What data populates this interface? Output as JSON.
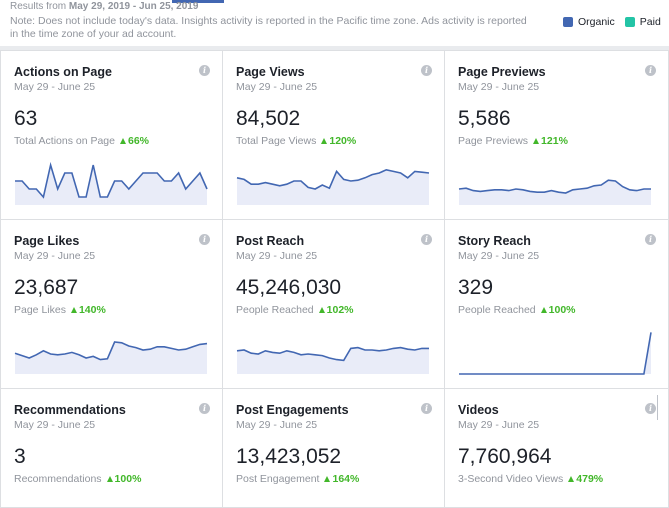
{
  "header": {
    "results_prefix": "Results from",
    "results_range": "May 29, 2019 - Jun 25, 2019",
    "note": "Note: Does not include today's data. Insights activity is reported in the Pacific time zone. Ads activity is reported in the time zone of your ad account."
  },
  "legend": {
    "organic_label": "Organic",
    "paid_label": "Paid",
    "organic_color": "#4267b2",
    "paid_color": "#23c4a6"
  },
  "cards": [
    {
      "title": "Actions on Page",
      "dates": "May 29 - June 25",
      "value": "63",
      "sub_label": "Total Actions on Page",
      "change": "66%",
      "series": [
        3,
        3,
        2,
        2,
        1,
        5,
        2,
        4,
        4,
        1,
        1,
        5,
        1,
        1,
        3,
        3,
        2,
        3,
        4,
        4,
        4,
        3,
        3,
        4,
        2,
        3,
        4,
        2
      ]
    },
    {
      "title": "Page Views",
      "dates": "May 29 - June 25",
      "value": "84,502",
      "sub_label": "Total Page Views",
      "change": "120%",
      "series": [
        3.4,
        3.2,
        2.6,
        2.6,
        2.8,
        2.6,
        2.4,
        2.6,
        3.0,
        3.0,
        2.2,
        2.0,
        2.5,
        2.1,
        4.2,
        3.2,
        3.0,
        3.1,
        3.4,
        3.8,
        4.0,
        4.4,
        4.2,
        4.0,
        3.4,
        4.2,
        4.1,
        4.0
      ]
    },
    {
      "title": "Page Previews",
      "dates": "May 29 - June 25",
      "value": "5,586",
      "sub_label": "Page Previews",
      "change": "121%",
      "series": [
        2.0,
        2.1,
        1.8,
        1.7,
        1.8,
        1.9,
        1.9,
        1.8,
        2.0,
        1.9,
        1.7,
        1.6,
        1.6,
        1.8,
        1.6,
        1.5,
        1.9,
        2.0,
        2.1,
        2.4,
        2.5,
        3.1,
        3.0,
        2.3,
        1.9,
        1.8,
        2.0,
        2.0
      ]
    },
    {
      "title": "Page Likes",
      "dates": "May 29 - June 25",
      "value": "23,687",
      "sub_label": "Page Likes",
      "change": "140%",
      "series": [
        2.6,
        2.3,
        2.0,
        2.4,
        2.9,
        2.5,
        2.4,
        2.5,
        2.7,
        2.4,
        2.0,
        2.2,
        1.8,
        1.9,
        4.0,
        3.9,
        3.5,
        3.3,
        3.0,
        3.1,
        3.4,
        3.4,
        3.2,
        3.0,
        3.1,
        3.4,
        3.7,
        3.8
      ]
    },
    {
      "title": "Post Reach",
      "dates": "May 29 - June 25",
      "value": "45,246,030",
      "sub_label": "People Reached",
      "change": "102%",
      "series": [
        2.9,
        3.0,
        2.6,
        2.5,
        2.9,
        2.7,
        2.6,
        2.9,
        2.7,
        2.4,
        2.5,
        2.4,
        2.3,
        2.0,
        1.8,
        1.7,
        3.2,
        3.3,
        3.0,
        3.0,
        2.9,
        3.0,
        3.2,
        3.3,
        3.1,
        3.0,
        3.2,
        3.2
      ]
    },
    {
      "title": "Story Reach",
      "dates": "May 29 - June 25",
      "value": "329",
      "sub_label": "People Reached",
      "change": "100%",
      "series": [
        0,
        0,
        0,
        0,
        0,
        0,
        0,
        0,
        0,
        0,
        0,
        0,
        0,
        0,
        0,
        0,
        0,
        0,
        0,
        0,
        0,
        0,
        0,
        0,
        0,
        0,
        0,
        5.2
      ]
    },
    {
      "title": "Recommendations",
      "dates": "May 29 - June 25",
      "value": "3",
      "sub_label": "Recommendations",
      "change": "100%",
      "series": []
    },
    {
      "title": "Post Engagements",
      "dates": "May 29 - June 25",
      "value": "13,423,052",
      "sub_label": "Post Engagement",
      "change": "164%",
      "series": []
    },
    {
      "title": "Videos",
      "dates": "May 29 - June 25",
      "value": "7,760,964",
      "sub_label": "3-Second Video Views",
      "change": "479%",
      "series": []
    }
  ],
  "icons": {
    "info": "info-icon",
    "up": "arrow-up-icon",
    "info_glyph": "i"
  }
}
